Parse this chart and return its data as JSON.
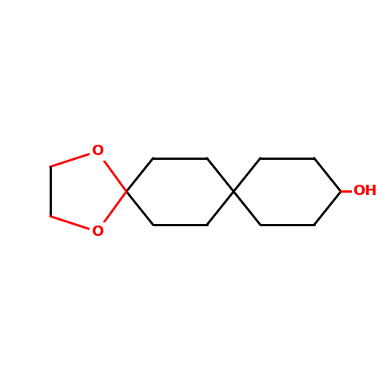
{
  "bond_color": "#000000",
  "bond_width": 2.0,
  "atom_color_O": "#ff0000",
  "background_color": "#ffffff",
  "OH_label": "OH",
  "O_label": "O",
  "font_size_atom": 13,
  "fig_size": [
    4.79,
    4.79
  ],
  "dpi": 100,
  "spiro1": [
    3.3,
    5.0
  ],
  "spiro2": [
    6.1,
    5.0
  ],
  "hex_r": 1.4,
  "hex_height_scale": 0.72,
  "pent_r": 1.1,
  "pent_rotation": 0,
  "xlim": [
    0,
    10
  ],
  "ylim": [
    0,
    10
  ]
}
